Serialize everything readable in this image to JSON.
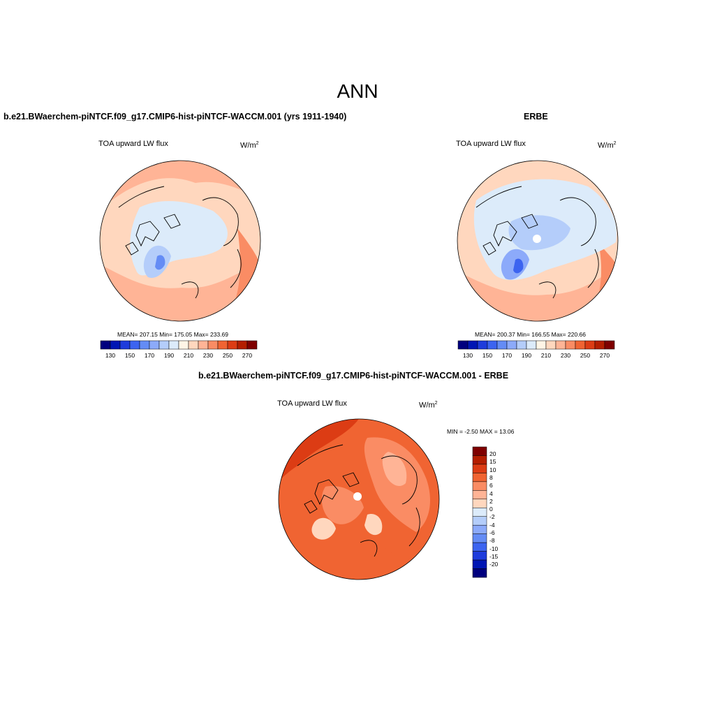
{
  "title": "ANN",
  "colors": {
    "seq_palette": [
      "#00007f",
      "#0016b4",
      "#1e3cdc",
      "#3c64f0",
      "#648cf5",
      "#8caafa",
      "#b4cdfa",
      "#dcebfa",
      "#fff5e6",
      "#ffd7be",
      "#ffb496",
      "#fa8c64",
      "#f06432",
      "#dc3c14",
      "#b41e00",
      "#7f0000"
    ],
    "diff_palette": [
      "#7f0000",
      "#b41e00",
      "#dc3c14",
      "#f06432",
      "#fa8c64",
      "#ffb496",
      "#ffd7be",
      "#dcebfa",
      "#b4cdfa",
      "#8caafa",
      "#648cf5",
      "#3c64f0",
      "#1e3cdc",
      "#0016b4",
      "#00007f"
    ]
  },
  "panels": [
    {
      "id": "model",
      "title": "b.e21.BWaerchem-piNTCF.f09_g17.CMIP6-hist-piNTCF-WACCM.001 (yrs 1911-1940)",
      "variable": "TOA upward LW flux",
      "units": "W/m",
      "units_sup": "2",
      "stats": "MEAN= 207.15  Min= 175.05  Max= 233.69",
      "colorbar_ticks": [
        "130",
        "150",
        "170",
        "190",
        "210",
        "230",
        "250",
        "270"
      ]
    },
    {
      "id": "obs",
      "title": "ERBE",
      "variable": "TOA upward LW flux",
      "units": "W/m",
      "units_sup": "2",
      "stats": "MEAN= 200.37  Min= 166.55  Max= 220.66",
      "colorbar_ticks": [
        "130",
        "150",
        "170",
        "190",
        "210",
        "230",
        "250",
        "270"
      ]
    },
    {
      "id": "diff",
      "title": "b.e21.BWaerchem-piNTCF.f09_g17.CMIP6-hist-piNTCF-WACCM.001 - ERBE",
      "variable": "TOA upward LW flux",
      "units": "W/m",
      "units_sup": "2",
      "stats": "MIN =  -2.50 MAX =  13.06",
      "colorbar_ticks": [
        "20",
        "15",
        "10",
        "8",
        "6",
        "4",
        "2",
        "0",
        "-2",
        "-4",
        "-6",
        "-8",
        "-10",
        "-15",
        "-20"
      ]
    }
  ]
}
